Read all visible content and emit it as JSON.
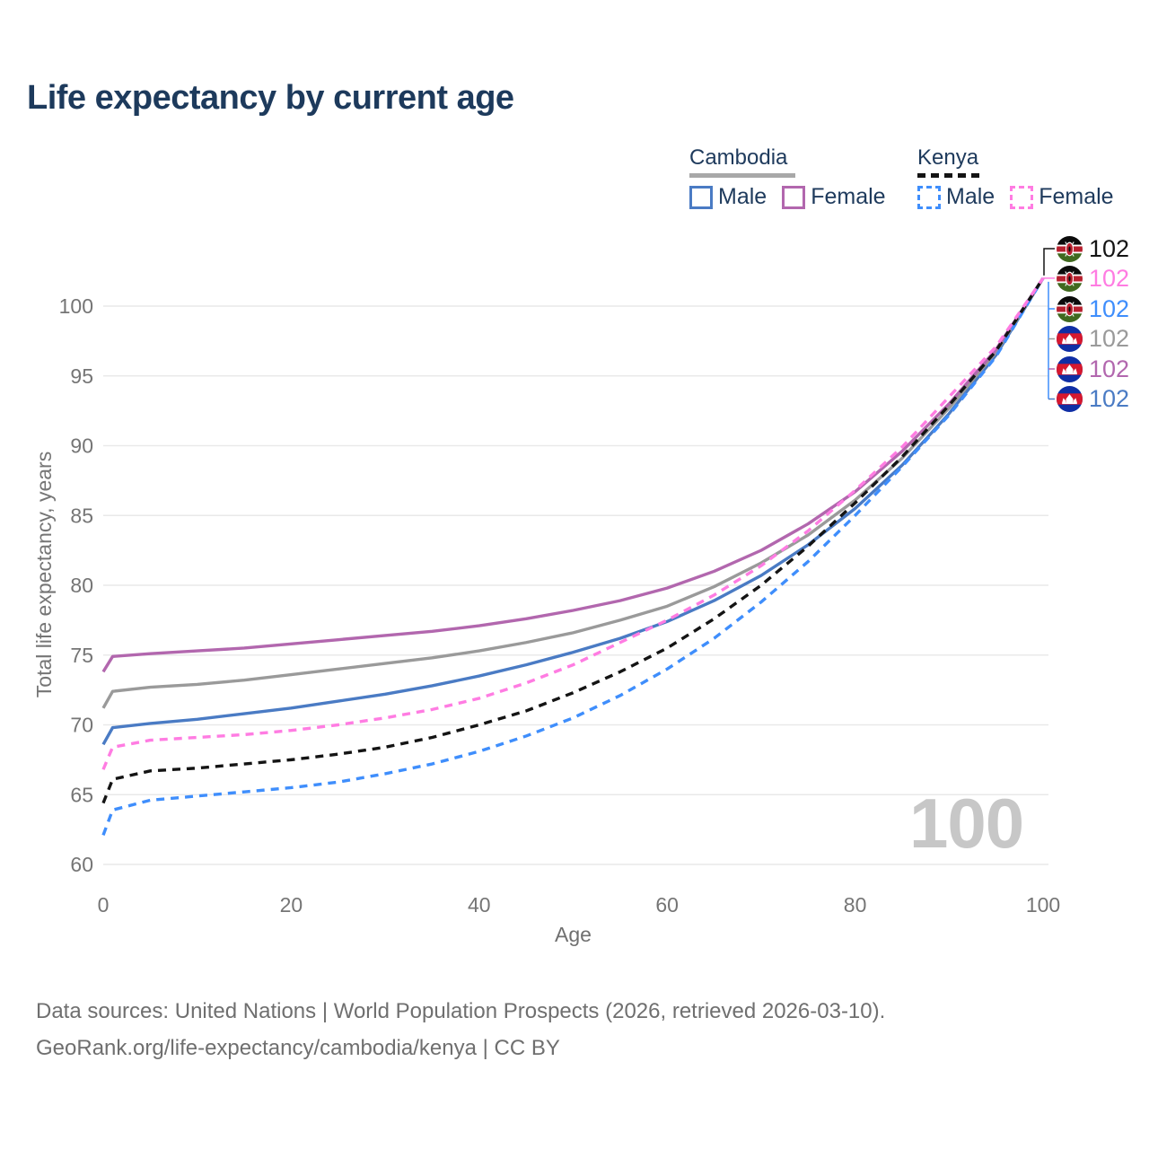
{
  "page": {
    "title": "Life expectancy by current age"
  },
  "legend": {
    "groups": [
      {
        "country": "Cambodia",
        "line": {
          "style": "solid",
          "color": "#a8a8a8"
        },
        "items": [
          {
            "label": "Male",
            "color": "#4a7bc4",
            "dashed": false
          },
          {
            "label": "Female",
            "color": "#b267ae",
            "dashed": false
          }
        ]
      },
      {
        "country": "Kenya",
        "line": {
          "style": "dashed",
          "color": "#141414"
        },
        "items": [
          {
            "label": "Male",
            "color": "#3f8efc",
            "dashed": true
          },
          {
            "label": "Female",
            "color": "#ff7ce2",
            "dashed": true
          }
        ]
      }
    ]
  },
  "chart_data": {
    "type": "line",
    "title": "Life expectancy by current age",
    "xlabel": "Age",
    "ylabel": "Total life expectancy, years",
    "xlim": [
      0,
      100
    ],
    "ylim": [
      60,
      103
    ],
    "x_ticks": [
      0,
      20,
      40,
      60,
      80,
      100
    ],
    "y_ticks": [
      60,
      65,
      70,
      75,
      80,
      85,
      90,
      95,
      100
    ],
    "grid": "horizontal-only",
    "legend_position": "top-right",
    "x": [
      0,
      1,
      5,
      10,
      15,
      20,
      25,
      30,
      35,
      40,
      45,
      50,
      55,
      60,
      65,
      70,
      75,
      80,
      85,
      90,
      95,
      100
    ],
    "series": [
      {
        "label": "Kenya",
        "country": "Kenya",
        "group": "total",
        "style": "dashed",
        "color": "#141414",
        "end_label": "102",
        "values": [
          64.4,
          66.1,
          66.7,
          66.9,
          67.2,
          67.5,
          67.9,
          68.4,
          69.1,
          70,
          71,
          72.3,
          73.8,
          75.5,
          77.6,
          80,
          82.8,
          85.9,
          89.2,
          92.9,
          96.8,
          102
        ]
      },
      {
        "label": "Kenya Female",
        "country": "Kenya",
        "group": "female",
        "style": "dashed",
        "color": "#ff7ce2",
        "end_label": "102",
        "values": [
          66.8,
          68.4,
          68.9,
          69.1,
          69.3,
          69.6,
          70,
          70.5,
          71.1,
          71.9,
          73,
          74.3,
          75.9,
          77.5,
          79.3,
          81.4,
          83.9,
          86.8,
          89.9,
          93.5,
          97.1,
          102
        ]
      },
      {
        "label": "Kenya Male",
        "country": "Kenya",
        "group": "male",
        "style": "dashed",
        "color": "#3f8efc",
        "end_label": "102",
        "values": [
          62.1,
          63.9,
          64.6,
          64.9,
          65.2,
          65.5,
          65.9,
          66.5,
          67.2,
          68.1,
          69.2,
          70.5,
          72.1,
          74,
          76.2,
          78.8,
          81.7,
          85,
          88.5,
          92.2,
          96.4,
          102
        ]
      },
      {
        "label": "Cambodia",
        "country": "Cambodia",
        "group": "total",
        "style": "solid",
        "color": "#9a9a9a",
        "end_label": "102",
        "values": [
          71.2,
          72.4,
          72.7,
          72.9,
          73.2,
          73.6,
          74,
          74.4,
          74.8,
          75.3,
          75.9,
          76.6,
          77.5,
          78.5,
          79.9,
          81.6,
          83.6,
          86.1,
          89.1,
          92.7,
          96.7,
          102
        ]
      },
      {
        "label": "Cambodia Female",
        "country": "Cambodia",
        "group": "female",
        "style": "solid",
        "color": "#b267ae",
        "end_label": "102",
        "values": [
          73.8,
          74.9,
          75.1,
          75.3,
          75.5,
          75.8,
          76.1,
          76.4,
          76.7,
          77.1,
          77.6,
          78.2,
          78.9,
          79.8,
          81,
          82.5,
          84.4,
          86.7,
          89.6,
          93,
          96.9,
          102
        ]
      },
      {
        "label": "Cambodia Male",
        "country": "Cambodia",
        "group": "male",
        "style": "solid",
        "color": "#4a7bc4",
        "end_label": "102",
        "values": [
          68.6,
          69.8,
          70.1,
          70.4,
          70.8,
          71.2,
          71.7,
          72.2,
          72.8,
          73.5,
          74.3,
          75.2,
          76.2,
          77.4,
          78.9,
          80.7,
          82.9,
          85.5,
          88.6,
          92.3,
          96.5,
          102
        ]
      }
    ]
  },
  "watermark": {
    "current_age": "100"
  },
  "footer": {
    "line1": "Data sources: United Nations | World Population Prospects (2026, retrieved 2026-03-10).",
    "line2": "GeoRank.org/life-expectancy/cambodia/kenya | CC BY"
  }
}
